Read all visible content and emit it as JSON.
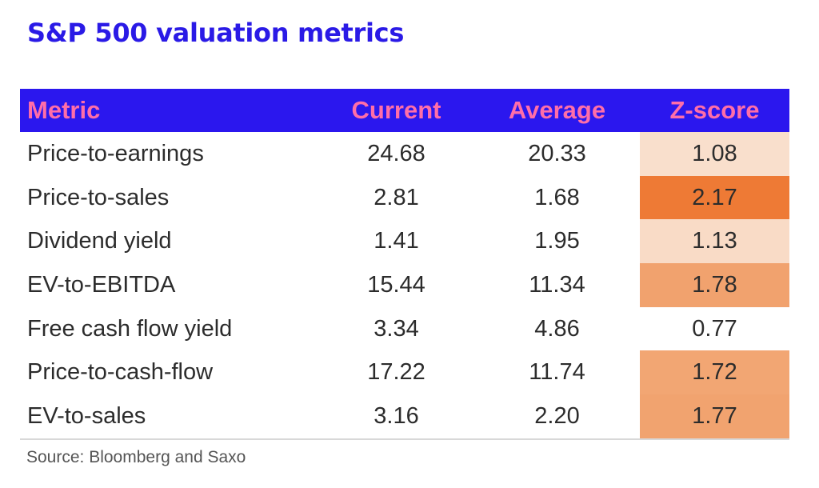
{
  "title": "S&P 500 valuation metrics",
  "source": "Source: Bloomberg and Saxo",
  "colors": {
    "header_bg": "#2b17ee",
    "header_text": "#ff6ea8",
    "title": "#2a1ae6"
  },
  "chart_data": {
    "type": "table",
    "title": "S&P 500 valuation metrics",
    "columns": [
      "Metric",
      "Current",
      "Average",
      "Z-score"
    ],
    "rows": [
      {
        "metric": "Price-to-earnings",
        "current": "24.68",
        "average": "20.33",
        "zscore": "1.08",
        "zcolor": "#f9dfcc"
      },
      {
        "metric": "Price-to-sales",
        "current": "2.81",
        "average": "1.68",
        "zscore": "2.17",
        "zcolor": "#ee7a35"
      },
      {
        "metric": "Dividend yield",
        "current": "1.41",
        "average": "1.95",
        "zscore": "1.13",
        "zcolor": "#f9dbc6"
      },
      {
        "metric": "EV-to-EBITDA",
        "current": "15.44",
        "average": "11.34",
        "zscore": "1.78",
        "zcolor": "#f1a26e"
      },
      {
        "metric": "Free cash flow yield",
        "current": "3.34",
        "average": "4.86",
        "zscore": "0.77",
        "zcolor": "#ffffff"
      },
      {
        "metric": "Price-to-cash-flow",
        "current": "17.22",
        "average": "11.74",
        "zscore": "1.72",
        "zcolor": "#f2a673"
      },
      {
        "metric": "EV-to-sales",
        "current": "3.16",
        "average": "2.20",
        "zscore": "1.77",
        "zcolor": "#f1a36f"
      }
    ],
    "source": "Source: Bloomberg and Saxo"
  }
}
